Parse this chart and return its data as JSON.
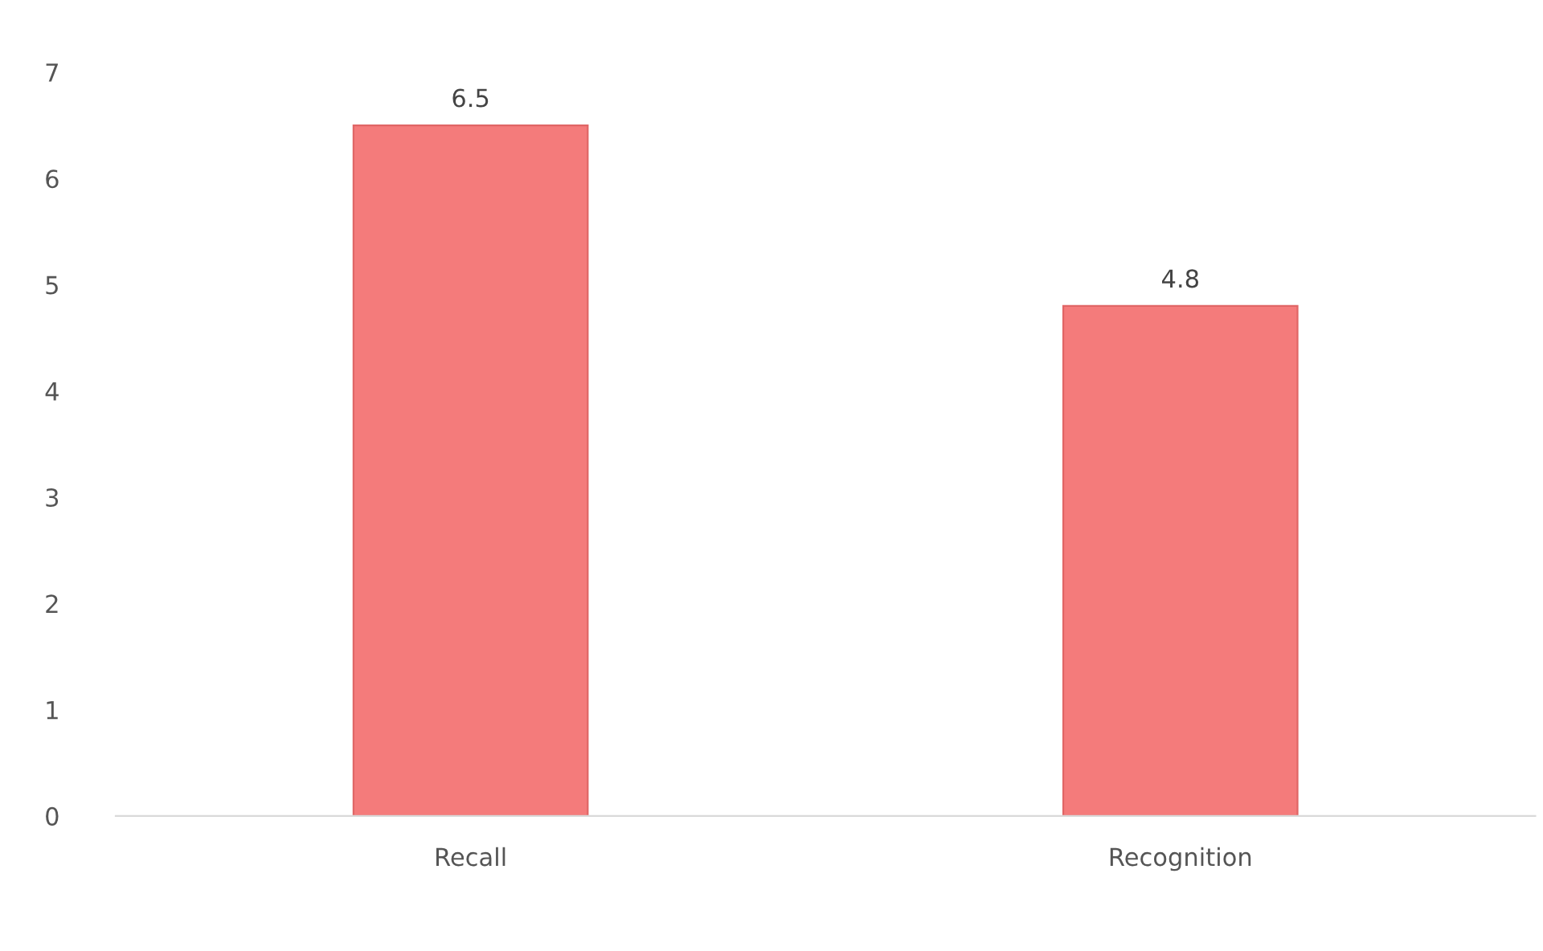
{
  "chart_data": {
    "type": "bar",
    "categories": [
      "Recall",
      "Recognition"
    ],
    "values": [
      6.5,
      4.8
    ],
    "color": "#f47b7b",
    "ylim": [
      0,
      7
    ],
    "yticks": [
      0,
      1,
      2,
      3,
      4,
      5,
      6,
      7
    ],
    "data_labels": true,
    "grid": false,
    "legend": false
  }
}
